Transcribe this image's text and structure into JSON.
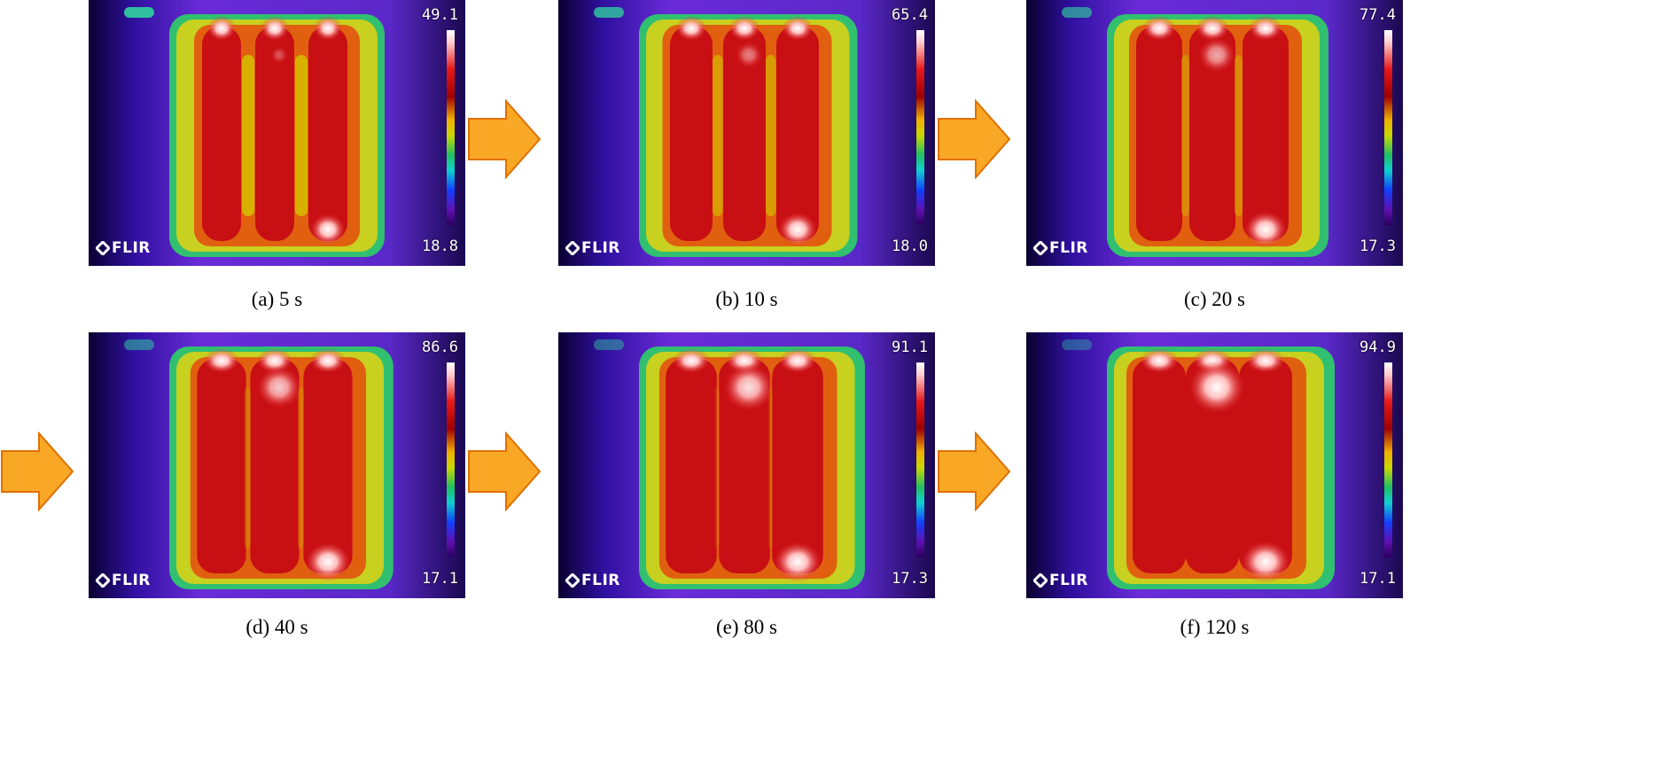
{
  "panels": [
    {
      "max": "49.1",
      "min": "18.8",
      "caption": "(a) 5 s"
    },
    {
      "max": "65.4",
      "min": "18.0",
      "caption": "(b) 10 s"
    },
    {
      "max": "77.4",
      "min": "17.3",
      "caption": "(c) 20 s"
    },
    {
      "max": "86.6",
      "min": "17.1",
      "caption": "(d) 40 s"
    },
    {
      "max": "91.1",
      "min": "17.3",
      "caption": "(e) 80 s"
    },
    {
      "max": "94.9",
      "min": "17.1",
      "caption": "(f) 120 s"
    }
  ],
  "logo_text": "FLIR",
  "colors": {
    "arrow_fill": "#f9a825",
    "arrow_stroke": "#e07000",
    "hot": "#d01010",
    "background_purple": "#5a1cc8"
  }
}
